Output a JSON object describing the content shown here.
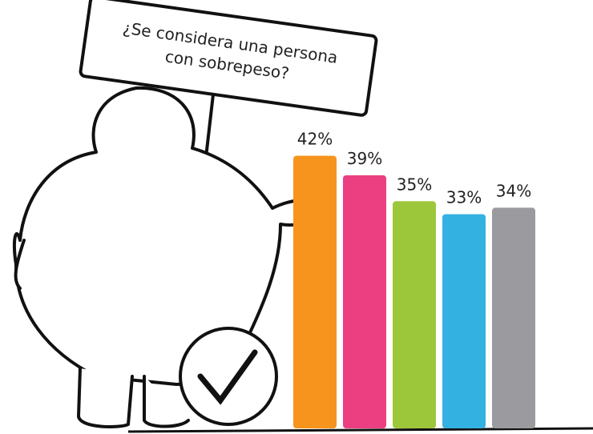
{
  "chart_data": {
    "type": "bar",
    "title": [
      "¿Se considera una persona",
      "con sobrepeso?"
    ],
    "categories": [
      null,
      null,
      null,
      null,
      null
    ],
    "values": [
      42,
      39,
      35,
      33,
      34
    ],
    "value_labels": [
      "42%",
      "39%",
      "35%",
      "33%",
      "34%"
    ],
    "colors": [
      "#f7941d",
      "#ec3f82",
      "#9dc73b",
      "#33b2e1",
      "#9b9b9f"
    ],
    "ylim": [
      0,
      66
    ]
  }
}
